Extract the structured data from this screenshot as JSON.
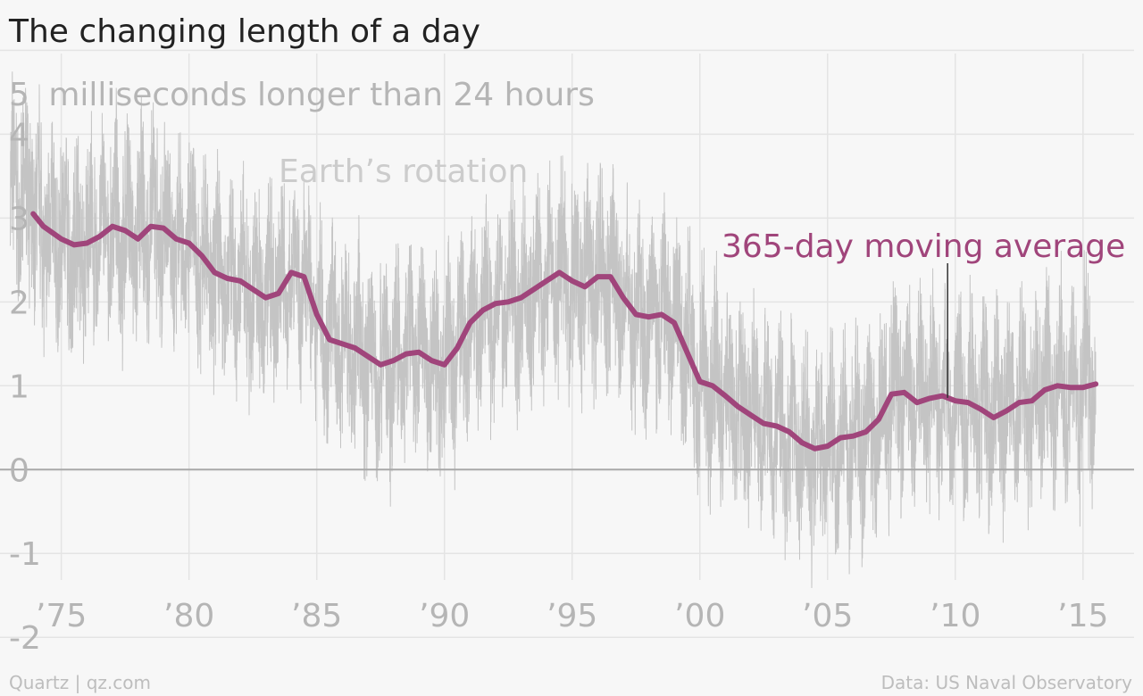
{
  "chart_data": {
    "type": "line",
    "title": "The changing length of a day",
    "ylabel": "milliseconds longer than 24 hours",
    "ylim": [
      -2.7,
      5.6
    ],
    "xlim": [
      1972.6,
      2017.0
    ],
    "x_tick_labels": [
      {
        "x": 1975,
        "label": "’75"
      },
      {
        "x": 1980,
        "label": "’80"
      },
      {
        "x": 1985,
        "label": "’85"
      },
      {
        "x": 1990,
        "label": "’90"
      },
      {
        "x": 1995,
        "label": "’95"
      },
      {
        "x": 2000,
        "label": "’00"
      },
      {
        "x": 2005,
        "label": "’05"
      },
      {
        "x": 2010,
        "label": "’10"
      },
      {
        "x": 2015,
        "label": "’15"
      }
    ],
    "y_ticks": [
      5,
      4,
      3,
      2,
      1,
      0,
      -1,
      -2
    ],
    "grid": true,
    "series": [
      {
        "name": "Earth’s rotation",
        "color": "#c4c4c4",
        "style": "daily, high-variance",
        "x_range": [
          1973.0,
          2015.5
        ]
      },
      {
        "name": "365-day moving average",
        "color": "#a0457b",
        "x": [
          1973.9,
          1974.3,
          1975.0,
          1975.5,
          1976.0,
          1976.5,
          1977.0,
          1977.5,
          1978.0,
          1978.5,
          1979.0,
          1979.5,
          1980.0,
          1980.5,
          1981.0,
          1981.5,
          1982.0,
          1982.5,
          1983.0,
          1983.5,
          1984.0,
          1984.5,
          1985.0,
          1985.5,
          1986.0,
          1986.5,
          1987.0,
          1987.5,
          1988.0,
          1988.5,
          1989.0,
          1989.5,
          1990.0,
          1990.5,
          1991.0,
          1991.5,
          1992.0,
          1992.5,
          1993.0,
          1993.5,
          1994.0,
          1994.5,
          1995.0,
          1995.5,
          1996.0,
          1996.5,
          1997.0,
          1997.5,
          1998.0,
          1998.5,
          1999.0,
          1999.5,
          2000.0,
          2000.5,
          2001.0,
          2001.5,
          2002.0,
          2002.5,
          2003.0,
          2003.5,
          2004.0,
          2004.5,
          2005.0,
          2005.5,
          2006.0,
          2006.5,
          2007.0,
          2007.5,
          2008.0,
          2008.5,
          2009.0,
          2009.5,
          2010.0,
          2010.5,
          2011.0,
          2011.5,
          2012.0,
          2012.5,
          2013.0,
          2013.5,
          2014.0,
          2014.5,
          2015.0,
          2015.5
        ],
        "values": [
          3.05,
          2.9,
          2.75,
          2.68,
          2.7,
          2.78,
          2.9,
          2.85,
          2.75,
          2.9,
          2.88,
          2.75,
          2.7,
          2.55,
          2.35,
          2.28,
          2.25,
          2.15,
          2.05,
          2.1,
          2.35,
          2.3,
          1.85,
          1.55,
          1.5,
          1.45,
          1.35,
          1.25,
          1.3,
          1.38,
          1.4,
          1.3,
          1.25,
          1.45,
          1.75,
          1.9,
          1.98,
          2.0,
          2.05,
          2.15,
          2.25,
          2.35,
          2.25,
          2.18,
          2.3,
          2.3,
          2.05,
          1.85,
          1.82,
          1.85,
          1.75,
          1.4,
          1.05,
          1.0,
          0.88,
          0.75,
          0.65,
          0.55,
          0.52,
          0.45,
          0.32,
          0.25,
          0.28,
          0.38,
          0.4,
          0.45,
          0.6,
          0.9,
          0.92,
          0.8,
          0.85,
          0.88,
          0.82,
          0.8,
          0.72,
          0.62,
          0.7,
          0.8,
          0.82,
          0.95,
          1.0,
          0.98,
          0.98,
          1.02
        ]
      }
    ],
    "annotations": [
      {
        "text": "Earth’s rotation",
        "x": 1986.5,
        "y": 3.8
      },
      {
        "text": "365-day moving average",
        "x": 2009.7,
        "y": 2.65
      }
    ]
  },
  "footer": {
    "source_left": "Quartz | qz.com",
    "source_right": "Data: US Naval Observatory"
  },
  "colors": {
    "background": "#f7f7f7",
    "grid": "#e4e4e4",
    "zero_line": "#a8a8a8",
    "raw_series": "#c4c4c4",
    "average_series": "#a0457b",
    "muted_text": "#b5b5b5"
  }
}
